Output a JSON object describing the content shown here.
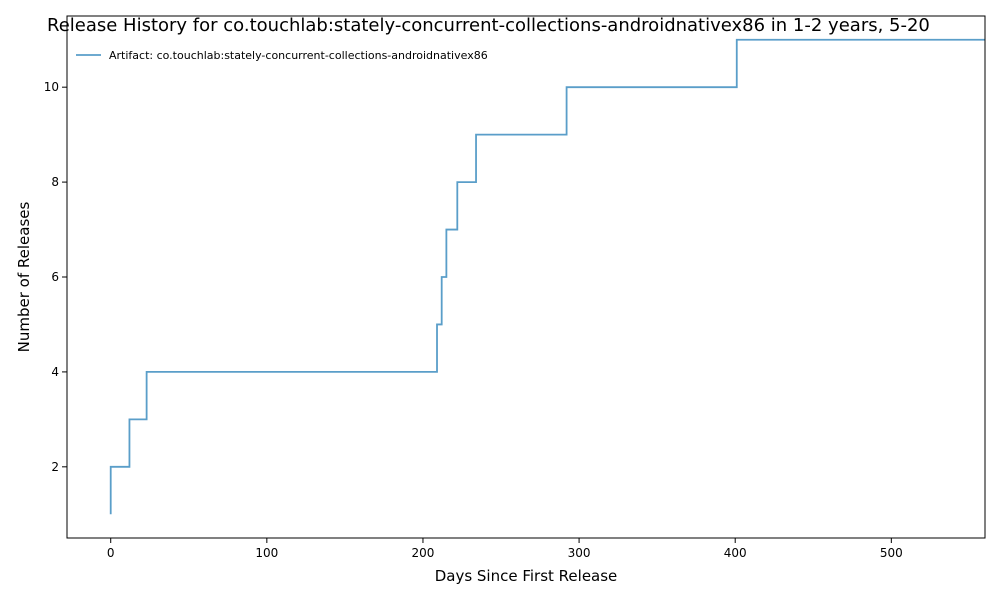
{
  "chart_data": {
    "type": "line",
    "title": "Release History for co.touchlab:stately-concurrent-collections-androidnativex86 in 1-2 years, 5-20",
    "xlabel": "Days Since First Release",
    "ylabel": "Number of Releases",
    "xlim": [
      -28,
      560
    ],
    "ylim": [
      0.5,
      11.5
    ],
    "xticks": [
      0,
      100,
      200,
      300,
      400,
      500
    ],
    "yticks": [
      2,
      4,
      6,
      8,
      10
    ],
    "grid": false,
    "legend_position": "top-left",
    "series": [
      {
        "name": "Artifact: co.touchlab:stately-concurrent-collections-androidnativex86",
        "color": "#5a9ec9",
        "drawstyle": "steps-post",
        "x": [
          0,
          0,
          12,
          23,
          209,
          212,
          215,
          222,
          234,
          292,
          401,
          560
        ],
        "y": [
          1,
          2,
          3,
          4,
          5,
          6,
          7,
          8,
          9,
          10,
          11,
          11
        ]
      }
    ]
  }
}
